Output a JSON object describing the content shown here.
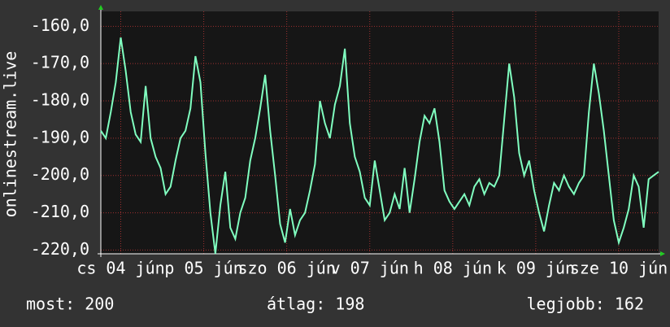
{
  "chart_data": {
    "type": "line",
    "ylabel": "onlinestream.live",
    "color": "#80ffc0",
    "grid": true,
    "xlim": [
      0,
      168
    ],
    "ylim": [
      -221,
      -156
    ],
    "yticks": [
      {
        "value": -160,
        "label": "-160,0"
      },
      {
        "value": -170,
        "label": "-170,0"
      },
      {
        "value": -180,
        "label": "-180,0"
      },
      {
        "value": -190,
        "label": "-190,0"
      },
      {
        "value": -200,
        "label": "-200,0"
      },
      {
        "value": -210,
        "label": "-210,0"
      },
      {
        "value": -220,
        "label": "-220,0"
      }
    ],
    "xticks": [
      {
        "value": 6,
        "label": "cs 04 jún"
      },
      {
        "value": 31,
        "label": "p 05 jún"
      },
      {
        "value": 56,
        "label": "szo 06 jún"
      },
      {
        "value": 81,
        "label": "v 07 jún"
      },
      {
        "value": 106,
        "label": "h 08 jún"
      },
      {
        "value": 131,
        "label": "k 09 jún"
      },
      {
        "value": 156,
        "label": "sze 10 jún"
      }
    ],
    "x": [
      0,
      1.5,
      3,
      4.5,
      6,
      7.5,
      9,
      10.5,
      12,
      13.5,
      15,
      16.5,
      18,
      19.5,
      21,
      22.5,
      24,
      25.5,
      27,
      28.5,
      30,
      31.5,
      33,
      34.5,
      36,
      37.5,
      39,
      40.5,
      42,
      43.5,
      45,
      46.5,
      48,
      49.5,
      51,
      52.5,
      54,
      55.5,
      57,
      58.5,
      60,
      61.5,
      63,
      64.5,
      66,
      67.5,
      69,
      70.5,
      72,
      73.5,
      75,
      76.5,
      78,
      79.5,
      81,
      82.5,
      84,
      85.5,
      87,
      88.5,
      90,
      91.5,
      93,
      94.5,
      96,
      97.5,
      99,
      100.5,
      102,
      103.5,
      105,
      106.5,
      108,
      109.5,
      111,
      112.5,
      114,
      115.5,
      117,
      118.5,
      120,
      121.5,
      123,
      124.5,
      126,
      127.5,
      129,
      130.5,
      132,
      133.5,
      135,
      136.5,
      138,
      139.5,
      141,
      142.5,
      144,
      145.5,
      147,
      148.5,
      150,
      151.5,
      153,
      154.5,
      156,
      157.5,
      159,
      160.5,
      162,
      163.5,
      165,
      166.5,
      168
    ],
    "values": [
      -188,
      -190,
      -183,
      -175,
      -163,
      -172,
      -183,
      -189,
      -191,
      -176,
      -190,
      -195,
      -198,
      -205,
      -203,
      -196,
      -190,
      -188,
      -182,
      -168,
      -175,
      -194,
      -210,
      -221,
      -208,
      -199,
      -214,
      -217,
      -210,
      -206,
      -196,
      -190,
      -182,
      -173,
      -188,
      -200,
      -213,
      -218,
      -209,
      -216,
      -212,
      -210,
      -204,
      -197,
      -180,
      -186,
      -190,
      -181,
      -176,
      -166,
      -186,
      -195,
      -199,
      -206,
      -208,
      -196,
      -204,
      -212,
      -210,
      -205,
      -209,
      -198,
      -210,
      -201,
      -191,
      -184,
      -186,
      -182,
      -191,
      -204,
      -207,
      -209,
      -207,
      -205,
      -208,
      -203,
      -201,
      -205,
      -202,
      -203,
      -200,
      -185,
      -170,
      -179,
      -194,
      -200,
      -196,
      -204,
      -210,
      -215,
      -208,
      -202,
      -204,
      -200,
      -203,
      -205,
      -202,
      -200,
      -183,
      -170,
      -178,
      -188,
      -200,
      -212,
      -218,
      -214,
      -209,
      -200,
      -203,
      -214,
      -201,
      -200,
      -199
    ],
    "summary": [
      "most: 200",
      "átlag: 198",
      "legjobb: 162"
    ]
  }
}
